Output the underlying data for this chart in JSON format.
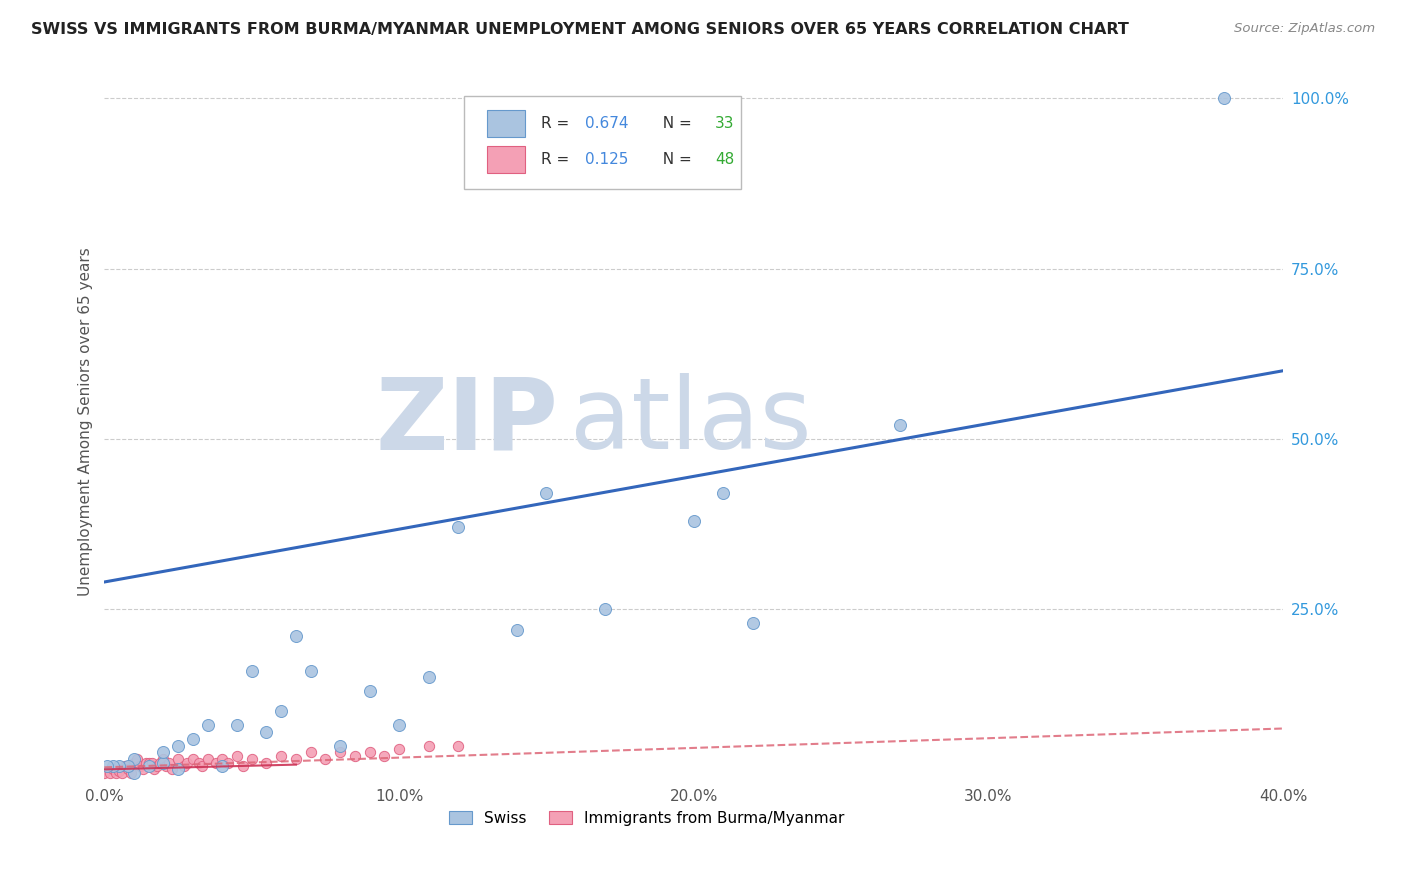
{
  "title": "SWISS VS IMMIGRANTS FROM BURMA/MYANMAR UNEMPLOYMENT AMONG SENIORS OVER 65 YEARS CORRELATION CHART",
  "source": "Source: ZipAtlas.com",
  "ylabel": "Unemployment Among Seniors over 65 years",
  "xlim": [
    0.0,
    0.4
  ],
  "ylim": [
    0.0,
    1.05
  ],
  "xtick_labels": [
    "0.0%",
    "10.0%",
    "20.0%",
    "30.0%",
    "40.0%"
  ],
  "xtick_values": [
    0.0,
    0.1,
    0.2,
    0.3,
    0.4
  ],
  "ytick_labels_right": [
    "100.0%",
    "75.0%",
    "50.0%",
    "25.0%"
  ],
  "ytick_values_right": [
    1.0,
    0.75,
    0.5,
    0.25
  ],
  "swiss_color": "#aac4e0",
  "burma_color": "#f4a0b5",
  "swiss_edge_color": "#6699cc",
  "burma_edge_color": "#e06080",
  "swiss_line_color": "#3366bb",
  "burma_line_color": "#dd6677",
  "grid_color": "#cccccc",
  "legend_R_color": "#4488dd",
  "legend_N_color": "#33aa33",
  "watermark_zip_color": "#ccd8e8",
  "watermark_atlas_color": "#ccd8e8",
  "R_swiss": 0.674,
  "N_swiss": 33,
  "R_burma": 0.125,
  "N_burma": 48,
  "swiss_line_x0": 0.0,
  "swiss_line_y0": 0.29,
  "swiss_line_x1": 0.4,
  "swiss_line_y1": 0.6,
  "burma_line_x0": 0.0,
  "burma_line_y0": 0.018,
  "burma_line_x1": 0.4,
  "burma_line_y1": 0.075,
  "swiss_x": [
    0.38,
    0.27,
    0.22,
    0.21,
    0.2,
    0.17,
    0.15,
    0.14,
    0.12,
    0.11,
    0.1,
    0.09,
    0.08,
    0.07,
    0.065,
    0.06,
    0.055,
    0.05,
    0.045,
    0.04,
    0.035,
    0.03,
    0.025,
    0.025,
    0.02,
    0.02,
    0.015,
    0.01,
    0.01,
    0.008,
    0.005,
    0.003,
    0.001
  ],
  "swiss_y": [
    1.0,
    0.52,
    0.23,
    0.42,
    0.38,
    0.25,
    0.42,
    0.22,
    0.37,
    0.15,
    0.08,
    0.13,
    0.05,
    0.16,
    0.21,
    0.1,
    0.07,
    0.16,
    0.08,
    0.02,
    0.08,
    0.06,
    0.05,
    0.015,
    0.025,
    0.04,
    0.02,
    0.03,
    0.01,
    0.02,
    0.02,
    0.02,
    0.02
  ],
  "burma_x": [
    0.0,
    0.002,
    0.003,
    0.004,
    0.005,
    0.006,
    0.007,
    0.008,
    0.009,
    0.01,
    0.011,
    0.012,
    0.013,
    0.014,
    0.015,
    0.016,
    0.017,
    0.018,
    0.019,
    0.02,
    0.021,
    0.022,
    0.023,
    0.025,
    0.027,
    0.028,
    0.03,
    0.032,
    0.033,
    0.035,
    0.038,
    0.04,
    0.042,
    0.045,
    0.047,
    0.05,
    0.055,
    0.06,
    0.065,
    0.07,
    0.075,
    0.08,
    0.085,
    0.09,
    0.095,
    0.1,
    0.11,
    0.12
  ],
  "burma_y": [
    0.01,
    0.01,
    0.015,
    0.01,
    0.012,
    0.009,
    0.02,
    0.015,
    0.01,
    0.025,
    0.03,
    0.02,
    0.015,
    0.025,
    0.025,
    0.025,
    0.015,
    0.02,
    0.025,
    0.03,
    0.02,
    0.025,
    0.015,
    0.03,
    0.02,
    0.025,
    0.03,
    0.025,
    0.02,
    0.03,
    0.025,
    0.03,
    0.025,
    0.035,
    0.02,
    0.03,
    0.025,
    0.035,
    0.03,
    0.04,
    0.03,
    0.04,
    0.035,
    0.04,
    0.035,
    0.045,
    0.05,
    0.05
  ],
  "background_color": "#ffffff"
}
